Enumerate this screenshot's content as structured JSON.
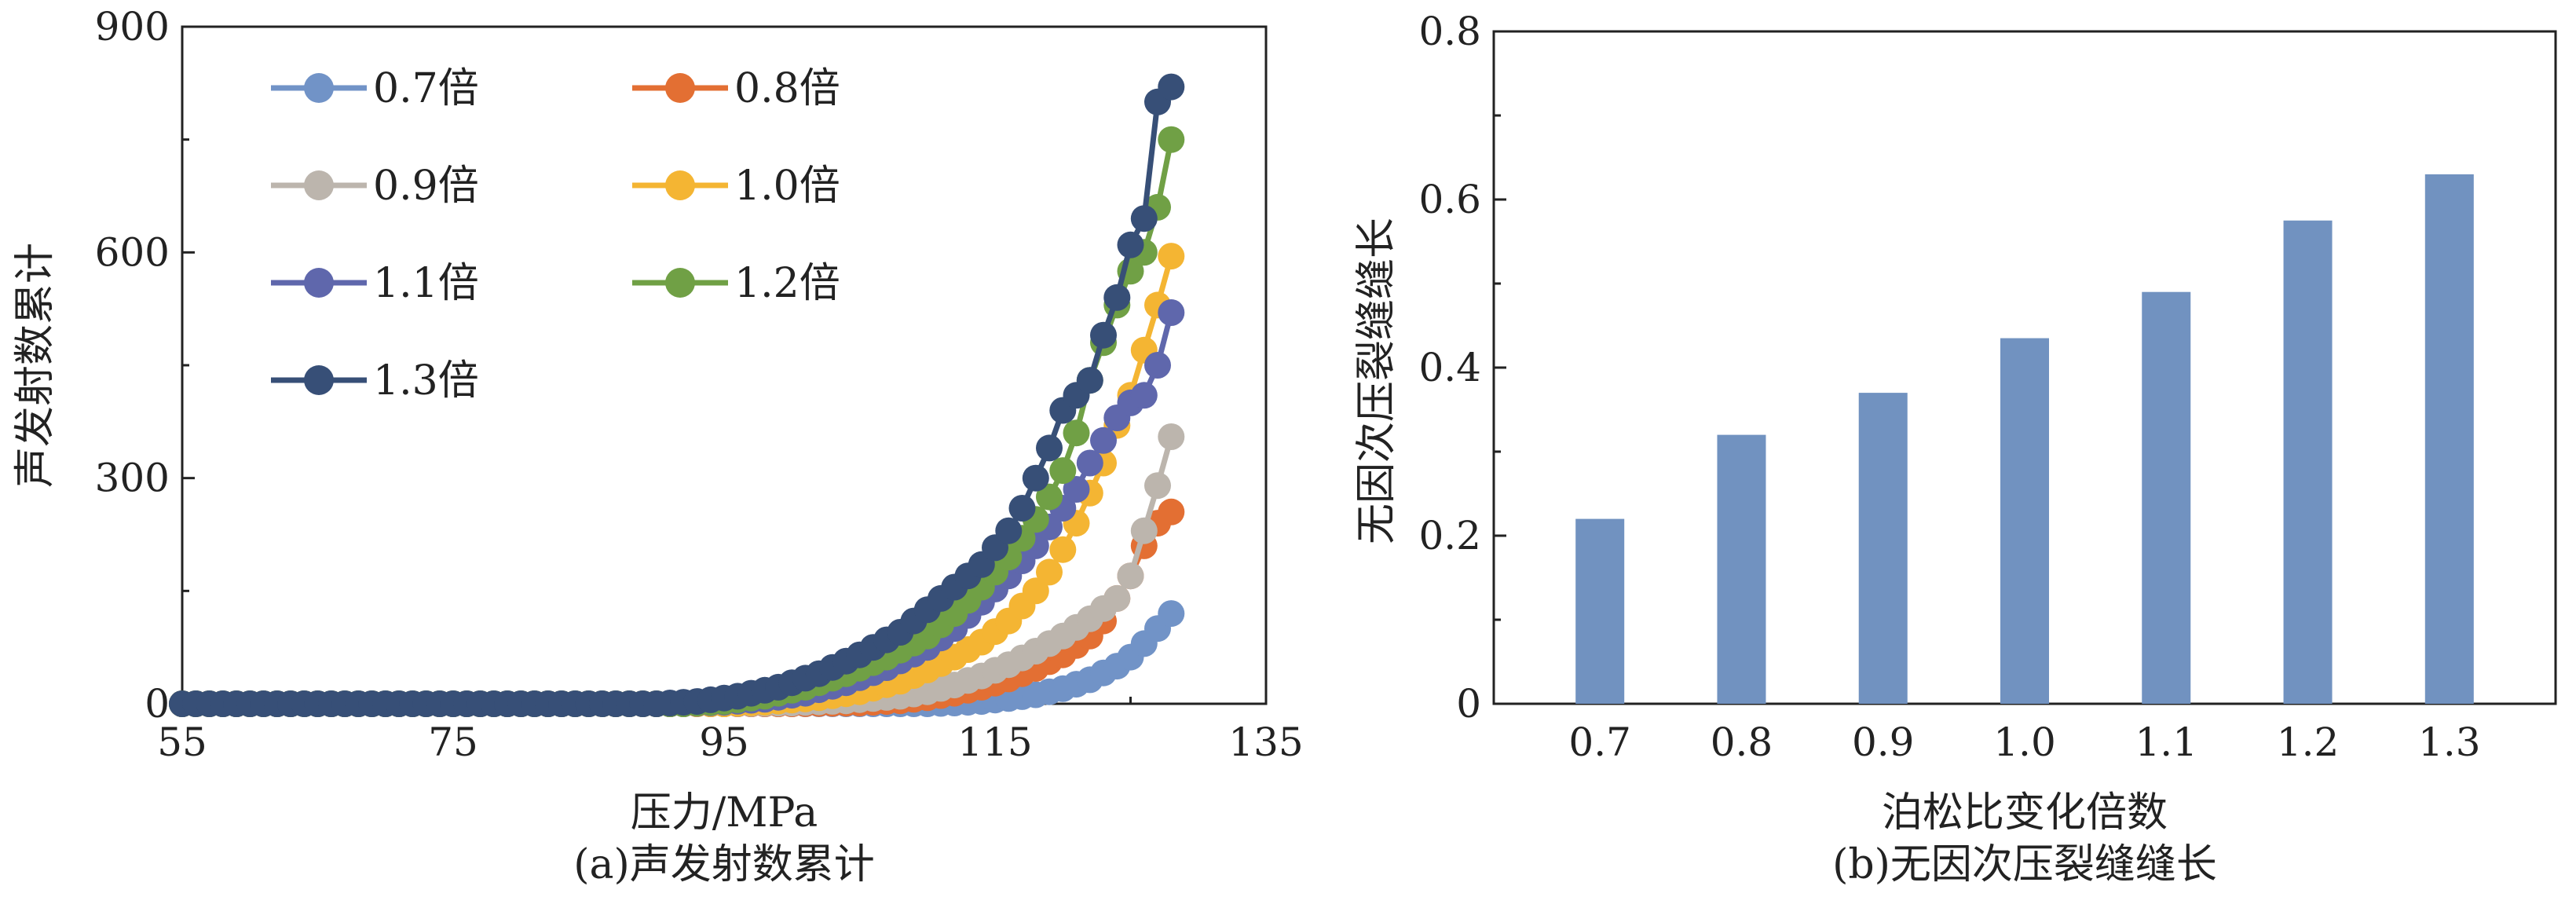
{
  "chart_data": [
    {
      "type": "line",
      "caption": "(a)声发射数累计",
      "xlabel": "压力/MPa",
      "ylabel": "声发射数累计",
      "xlim": [
        55,
        135
      ],
      "ylim": [
        0,
        900
      ],
      "xticks": [
        55,
        75,
        95,
        115,
        135
      ],
      "yticks": [
        0,
        300,
        600,
        900
      ],
      "xtick_labels": [
        "55",
        "75",
        "95",
        "115",
        "135"
      ],
      "ytick_labels": [
        "0",
        "300",
        "600",
        "900"
      ],
      "grid": false,
      "legend_position": "top-left",
      "series": [
        {
          "name": "0.7倍",
          "color": "#7193c7",
          "points": [
            [
              55,
              0
            ],
            [
              95,
              0
            ],
            [
              100,
              0
            ],
            [
              105,
              0
            ],
            [
              110,
              0
            ],
            [
              112,
              1
            ],
            [
              114,
              3
            ],
            [
              116,
              7
            ],
            [
              118,
              12
            ],
            [
              120,
              20
            ],
            [
              122,
              32
            ],
            [
              124,
              50
            ],
            [
              125,
              62
            ],
            [
              126,
              80
            ],
            [
              127,
              100
            ],
            [
              128,
              120
            ]
          ]
        },
        {
          "name": "0.8倍",
          "color": "#e36f33",
          "points": [
            [
              55,
              0
            ],
            [
              95,
              0
            ],
            [
              100,
              0
            ],
            [
              105,
              1
            ],
            [
              108,
              4
            ],
            [
              110,
              8
            ],
            [
              112,
              14
            ],
            [
              114,
              22
            ],
            [
              116,
              33
            ],
            [
              118,
              47
            ],
            [
              120,
              65
            ],
            [
              122,
              90
            ],
            [
              123,
              110
            ],
            [
              124,
              140
            ],
            [
              125,
              170
            ],
            [
              126,
              210
            ],
            [
              127,
              240
            ],
            [
              128,
              255
            ]
          ]
        },
        {
          "name": "0.9倍",
          "color": "#bcb5ad",
          "points": [
            [
              55,
              0
            ],
            [
              95,
              0
            ],
            [
              100,
              1
            ],
            [
              104,
              4
            ],
            [
              108,
              10
            ],
            [
              110,
              16
            ],
            [
              112,
              25
            ],
            [
              114,
              37
            ],
            [
              116,
              52
            ],
            [
              118,
              70
            ],
            [
              120,
              90
            ],
            [
              122,
              113
            ],
            [
              124,
              140
            ],
            [
              125,
              170
            ],
            [
              126,
              230
            ],
            [
              127,
              290
            ],
            [
              128,
              355
            ]
          ]
        },
        {
          "name": "1.0倍",
          "color": "#f4b533",
          "points": [
            [
              55,
              0
            ],
            [
              95,
              0
            ],
            [
              98,
              2
            ],
            [
              102,
              8
            ],
            [
              105,
              16
            ],
            [
              108,
              30
            ],
            [
              110,
              45
            ],
            [
              112,
              62
            ],
            [
              114,
              82
            ],
            [
              116,
              110
            ],
            [
              118,
              150
            ],
            [
              119,
              175
            ],
            [
              120,
              205
            ],
            [
              121,
              240
            ],
            [
              122,
              280
            ],
            [
              123,
              320
            ],
            [
              124,
              370
            ],
            [
              125,
              410
            ],
            [
              126,
              470
            ],
            [
              127,
              530
            ],
            [
              128,
              595
            ]
          ]
        },
        {
          "name": "1.1倍",
          "color": "#5f67ac",
          "points": [
            [
              55,
              0
            ],
            [
              92,
              0
            ],
            [
              95,
              2
            ],
            [
              98,
              6
            ],
            [
              101,
              14
            ],
            [
              104,
              28
            ],
            [
              107,
              48
            ],
            [
              110,
              75
            ],
            [
              112,
              100
            ],
            [
              114,
              135
            ],
            [
              116,
              170
            ],
            [
              117,
              190
            ],
            [
              118,
              210
            ],
            [
              119,
              235
            ],
            [
              120,
              260
            ],
            [
              121,
              285
            ],
            [
              122,
              320
            ],
            [
              123,
              350
            ],
            [
              124,
              380
            ],
            [
              125,
              400
            ],
            [
              126,
              410
            ],
            [
              127,
              450
            ],
            [
              128,
              520
            ]
          ]
        },
        {
          "name": "1.2倍",
          "color": "#70a045",
          "points": [
            [
              55,
              0
            ],
            [
              92,
              0
            ],
            [
              95,
              3
            ],
            [
              98,
              10
            ],
            [
              101,
              22
            ],
            [
              104,
              40
            ],
            [
              107,
              62
            ],
            [
              110,
              90
            ],
            [
              112,
              120
            ],
            [
              114,
              155
            ],
            [
              116,
              195
            ],
            [
              118,
              245
            ],
            [
              119,
              275
            ],
            [
              120,
              310
            ],
            [
              121,
              360
            ],
            [
              122,
              430
            ],
            [
              123,
              480
            ],
            [
              124,
              530
            ],
            [
              125,
              575
            ],
            [
              126,
              600
            ],
            [
              127,
              660
            ],
            [
              128,
              750
            ]
          ]
        },
        {
          "name": "1.3倍",
          "color": "#374f77",
          "points": [
            [
              55,
              0
            ],
            [
              90,
              0
            ],
            [
              93,
              3
            ],
            [
              96,
              10
            ],
            [
              99,
              22
            ],
            [
              102,
              40
            ],
            [
              105,
              65
            ],
            [
              108,
              95
            ],
            [
              110,
              125
            ],
            [
              112,
              155
            ],
            [
              114,
              185
            ],
            [
              116,
              230
            ],
            [
              117,
              260
            ],
            [
              118,
              300
            ],
            [
              119,
              340
            ],
            [
              120,
              390
            ],
            [
              121,
              410
            ],
            [
              122,
              430
            ],
            [
              123,
              490
            ],
            [
              124,
              540
            ],
            [
              125,
              610
            ],
            [
              126,
              645
            ],
            [
              127,
              800
            ],
            [
              128,
              820
            ]
          ]
        }
      ]
    },
    {
      "type": "bar",
      "caption": "(b)无因次压裂缝缝长",
      "xlabel": "泊松比变化倍数",
      "ylabel": "无因次压裂缝缝长",
      "categories": [
        "0.7",
        "0.8",
        "0.9",
        "1.0",
        "1.1",
        "1.2",
        "1.3"
      ],
      "values": [
        0.22,
        0.32,
        0.37,
        0.435,
        0.49,
        0.575,
        0.63
      ],
      "ylim": [
        0,
        0.8
      ],
      "yticks": [
        0,
        0.2,
        0.4,
        0.6,
        0.8
      ],
      "ytick_labels": [
        "0",
        "0.2",
        "0.4",
        "0.6",
        "0.8"
      ],
      "bar_color": "#7192c0",
      "grid": false
    }
  ]
}
